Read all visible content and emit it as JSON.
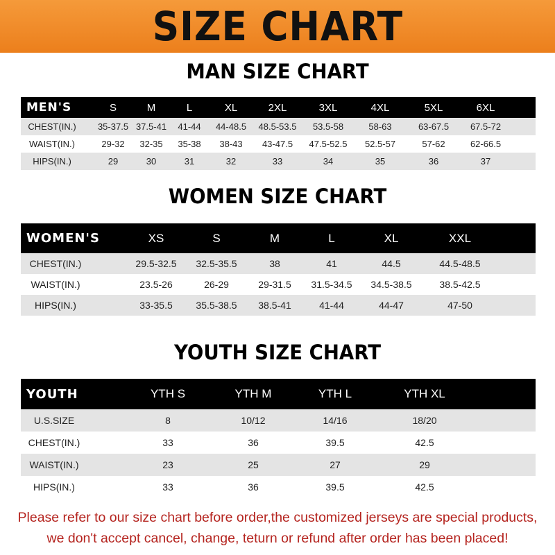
{
  "banner": {
    "title": "SIZE CHART",
    "color": "#ee8424"
  },
  "men": {
    "title": "MAN SIZE CHART",
    "header": [
      "MEN'S",
      "S",
      "M",
      "L",
      "XL",
      "2XL",
      "3XL",
      "4XL",
      "5XL",
      "6XL"
    ],
    "rows": [
      [
        "CHEST(IN.)",
        "35-37.5",
        "37.5-41",
        "41-44",
        "44-48.5",
        "48.5-53.5",
        "53.5-58",
        "58-63",
        "63-67.5",
        "67.5-72"
      ],
      [
        "WAIST(IN.)",
        "29-32",
        "32-35",
        "35-38",
        "38-43",
        "43-47.5",
        "47.5-52.5",
        "52.5-57",
        "57-62",
        "62-66.5"
      ],
      [
        "HIPS(IN.)",
        "29",
        "30",
        "31",
        "32",
        "33",
        "34",
        "35",
        "36",
        "37"
      ]
    ]
  },
  "women": {
    "title": "WOMEN SIZE CHART",
    "header": [
      "WOMEN'S",
      "XS",
      "S",
      "M",
      "L",
      "XL",
      "XXL"
    ],
    "rows": [
      [
        "CHEST(IN.)",
        "29.5-32.5",
        "32.5-35.5",
        "38",
        "41",
        "44.5",
        "44.5-48.5"
      ],
      [
        "WAIST(IN.)",
        "23.5-26",
        "26-29",
        "29-31.5",
        "31.5-34.5",
        "34.5-38.5",
        "38.5-42.5"
      ],
      [
        "HIPS(IN.)",
        "33-35.5",
        "35.5-38.5",
        "38.5-41",
        "41-44",
        "44-47",
        "47-50"
      ]
    ]
  },
  "youth": {
    "title": "YOUTH SIZE CHART",
    "header": [
      "YOUTH",
      "YTH S",
      "YTH M",
      "YTH L",
      "YTH XL"
    ],
    "rows": [
      [
        "U.S.SIZE",
        "8",
        "10/12",
        "14/16",
        "18/20"
      ],
      [
        "CHEST(IN.)",
        "33",
        "36",
        "39.5",
        "42.5"
      ],
      [
        "WAIST(IN.)",
        "23",
        "25",
        "27",
        "29"
      ],
      [
        "HIPS(IN.)",
        "33",
        "36",
        "39.5",
        "42.5"
      ]
    ]
  },
  "notice": {
    "line1": "Please refer to our size chart before order,the customized jerseys are special products,",
    "line2": "we don't accept cancel, change, teturn or refund after order has been placed!",
    "color": "#b5241f"
  }
}
